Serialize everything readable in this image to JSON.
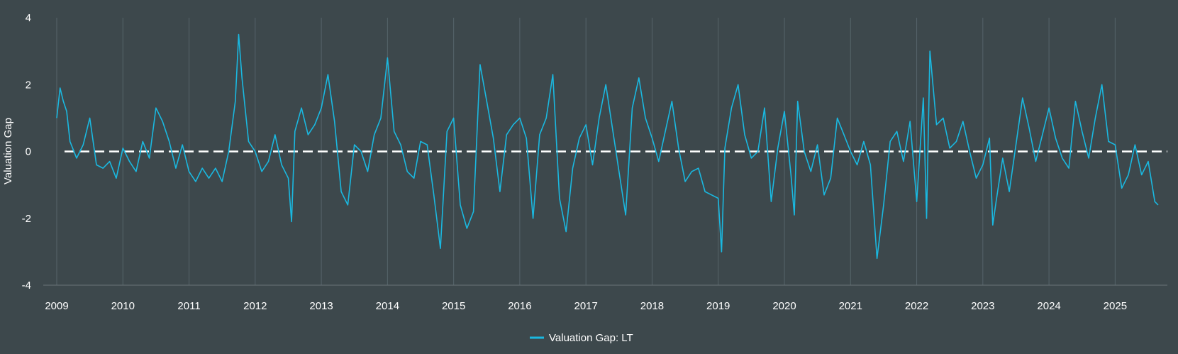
{
  "chart_data": {
    "type": "line",
    "title": "",
    "ylabel": "Valuation Gap",
    "xlabel": "",
    "ylim": [
      -4,
      4
    ],
    "yticks": [
      4,
      2,
      0,
      -2,
      -4
    ],
    "xticks": [
      "2009",
      "2010",
      "2011",
      "2012",
      "2013",
      "2014",
      "2015",
      "2016",
      "2017",
      "2018",
      "2019",
      "2020",
      "2021",
      "2022",
      "2023",
      "2024",
      "2025"
    ],
    "reference_line": {
      "y": 0,
      "style": "dashed",
      "color": "#ffffff"
    },
    "grid": "vertical",
    "legend_position": "bottom-center",
    "colors": {
      "background": "#3d484c",
      "series": "#1ab8e0",
      "grid": "#56646a"
    },
    "series": [
      {
        "name": "Valuation Gap: LT",
        "x": [
          2009.0,
          2009.05,
          2009.1,
          2009.15,
          2009.2,
          2009.3,
          2009.4,
          2009.5,
          2009.6,
          2009.7,
          2009.8,
          2009.9,
          2010.0,
          2010.1,
          2010.2,
          2010.3,
          2010.4,
          2010.5,
          2010.6,
          2010.7,
          2010.8,
          2010.9,
          2011.0,
          2011.1,
          2011.2,
          2011.3,
          2011.4,
          2011.5,
          2011.6,
          2011.7,
          2011.75,
          2011.8,
          2011.9,
          2012.0,
          2012.1,
          2012.2,
          2012.3,
          2012.4,
          2012.5,
          2012.55,
          2012.6,
          2012.7,
          2012.8,
          2012.9,
          2013.0,
          2013.1,
          2013.2,
          2013.3,
          2013.4,
          2013.5,
          2013.6,
          2013.7,
          2013.8,
          2013.9,
          2014.0,
          2014.1,
          2014.2,
          2014.3,
          2014.4,
          2014.5,
          2014.6,
          2014.7,
          2014.8,
          2014.9,
          2015.0,
          2015.1,
          2015.2,
          2015.3,
          2015.4,
          2015.5,
          2015.6,
          2015.7,
          2015.8,
          2015.9,
          2016.0,
          2016.1,
          2016.2,
          2016.3,
          2016.4,
          2016.5,
          2016.6,
          2016.7,
          2016.8,
          2016.9,
          2017.0,
          2017.1,
          2017.2,
          2017.3,
          2017.4,
          2017.5,
          2017.6,
          2017.7,
          2017.8,
          2017.9,
          2018.0,
          2018.1,
          2018.2,
          2018.3,
          2018.4,
          2018.5,
          2018.6,
          2018.7,
          2018.8,
          2018.9,
          2019.0,
          2019.05,
          2019.1,
          2019.2,
          2019.3,
          2019.4,
          2019.5,
          2019.6,
          2019.7,
          2019.8,
          2019.9,
          2020.0,
          2020.1,
          2020.15,
          2020.2,
          2020.3,
          2020.4,
          2020.5,
          2020.6,
          2020.7,
          2020.8,
          2020.9,
          2021.0,
          2021.1,
          2021.2,
          2021.3,
          2021.4,
          2021.5,
          2021.6,
          2021.7,
          2021.8,
          2021.9,
          2022.0,
          2022.1,
          2022.15,
          2022.2,
          2022.3,
          2022.4,
          2022.5,
          2022.6,
          2022.7,
          2022.8,
          2022.9,
          2023.0,
          2023.1,
          2023.15,
          2023.2,
          2023.3,
          2023.4,
          2023.5,
          2023.6,
          2023.7,
          2023.8,
          2023.9,
          2024.0,
          2024.1,
          2024.2,
          2024.3,
          2024.4,
          2024.5,
          2024.6,
          2024.7,
          2024.8,
          2024.9,
          2025.0,
          2025.1,
          2025.2,
          2025.3,
          2025.4,
          2025.5,
          2025.6,
          2025.65
        ],
        "y": [
          1.0,
          1.9,
          1.5,
          1.2,
          0.3,
          -0.2,
          0.2,
          1.0,
          -0.4,
          -0.5,
          -0.3,
          -0.8,
          0.1,
          -0.3,
          -0.6,
          0.3,
          -0.2,
          1.3,
          0.9,
          0.3,
          -0.5,
          0.2,
          -0.6,
          -0.9,
          -0.5,
          -0.8,
          -0.5,
          -0.9,
          0.0,
          1.5,
          3.5,
          2.2,
          0.3,
          0.0,
          -0.6,
          -0.3,
          0.5,
          -0.4,
          -0.8,
          -2.1,
          0.6,
          1.3,
          0.5,
          0.8,
          1.3,
          2.3,
          0.9,
          -1.2,
          -1.6,
          0.2,
          0.0,
          -0.6,
          0.5,
          1.0,
          2.8,
          0.6,
          0.2,
          -0.6,
          -0.8,
          0.3,
          0.2,
          -1.3,
          -2.9,
          0.6,
          1.0,
          -1.6,
          -2.3,
          -1.8,
          2.6,
          1.5,
          0.4,
          -1.2,
          0.5,
          0.8,
          1.0,
          0.4,
          -2.0,
          0.5,
          1.0,
          2.3,
          -1.4,
          -2.4,
          -0.5,
          0.4,
          0.8,
          -0.4,
          1.0,
          2.0,
          0.7,
          -0.6,
          -1.9,
          1.3,
          2.2,
          1.0,
          0.4,
          -0.3,
          0.6,
          1.5,
          0.1,
          -0.9,
          -0.6,
          -0.5,
          -1.2,
          -1.3,
          -1.4,
          -3.0,
          0.1,
          1.3,
          2.0,
          0.5,
          -0.2,
          0.0,
          1.3,
          -1.5,
          0.1,
          1.2,
          -0.7,
          -1.9,
          1.5,
          0.0,
          -0.6,
          0.2,
          -1.3,
          -0.8,
          1.0,
          0.5,
          0.0,
          -0.4,
          0.3,
          -0.4,
          -3.2,
          -1.6,
          0.3,
          0.6,
          -0.3,
          0.9,
          -1.5,
          1.6,
          -2.0,
          3.0,
          0.8,
          1.0,
          0.1,
          0.3,
          0.9,
          0.0,
          -0.8,
          -0.4,
          0.4,
          -2.2,
          -1.5,
          -0.2,
          -1.2,
          0.2,
          1.6,
          0.7,
          -0.3,
          0.5,
          1.3,
          0.4,
          -0.2,
          -0.5,
          1.5,
          0.6,
          -0.2,
          1.0,
          2.0,
          0.3,
          0.2,
          -1.1,
          -0.7,
          0.2,
          -0.7,
          -0.3,
          -1.5,
          -1.6
        ]
      }
    ]
  }
}
